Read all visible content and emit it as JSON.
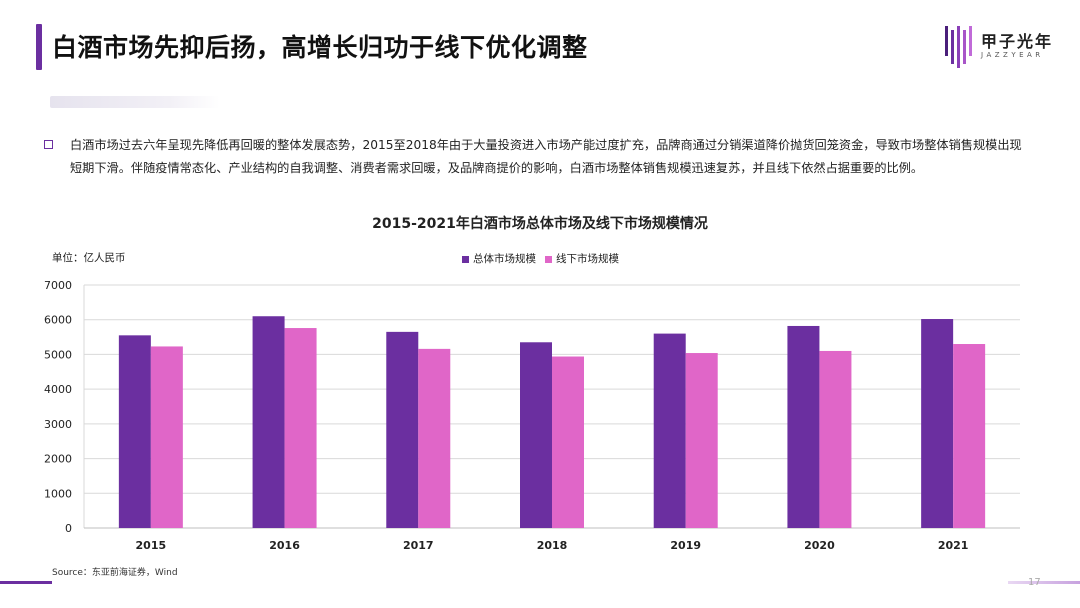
{
  "header": {
    "title": "白酒市场先抑后扬，高增长归功于线下优化调整",
    "brand_name": "甲子光年",
    "brand_sub": "JAZZYEAR"
  },
  "paragraph": "白酒市场过去六年呈现先降低再回暖的整体发展态势，2015至2018年由于大量投资进入市场产能过度扩充，品牌商通过分销渠道降价抛货回笼资金，导致市场整体销售规模出现短期下滑。伴随疫情常态化、产业结构的自我调整、消费者需求回暖，及品牌商提价的影响，白酒市场整体销售规模迅速复苏，并且线下依然占据重要的比例。",
  "chart_data": {
    "type": "bar",
    "title": "2015-2021年白酒市场总体市场及线下市场规模情况",
    "unit": "单位：亿人民币",
    "categories": [
      "2015",
      "2016",
      "2017",
      "2018",
      "2019",
      "2020",
      "2021"
    ],
    "series": [
      {
        "name": "总体市场规模",
        "color": "#6b2fa0",
        "values": [
          5550,
          6100,
          5650,
          5350,
          5600,
          5820,
          6020
        ]
      },
      {
        "name": "线下市场规模",
        "color": "#e066c8",
        "values": [
          5230,
          5760,
          5160,
          4940,
          5040,
          5100,
          5300
        ]
      }
    ],
    "ylim": [
      0,
      7000
    ],
    "yticks": [
      "0",
      "1000",
      "2000",
      "3000",
      "4000",
      "5000",
      "6000",
      "7000"
    ],
    "grid": true,
    "legend_position": "top-center"
  },
  "source": "Source：东亚前海证券，Wind",
  "page_number": "17"
}
